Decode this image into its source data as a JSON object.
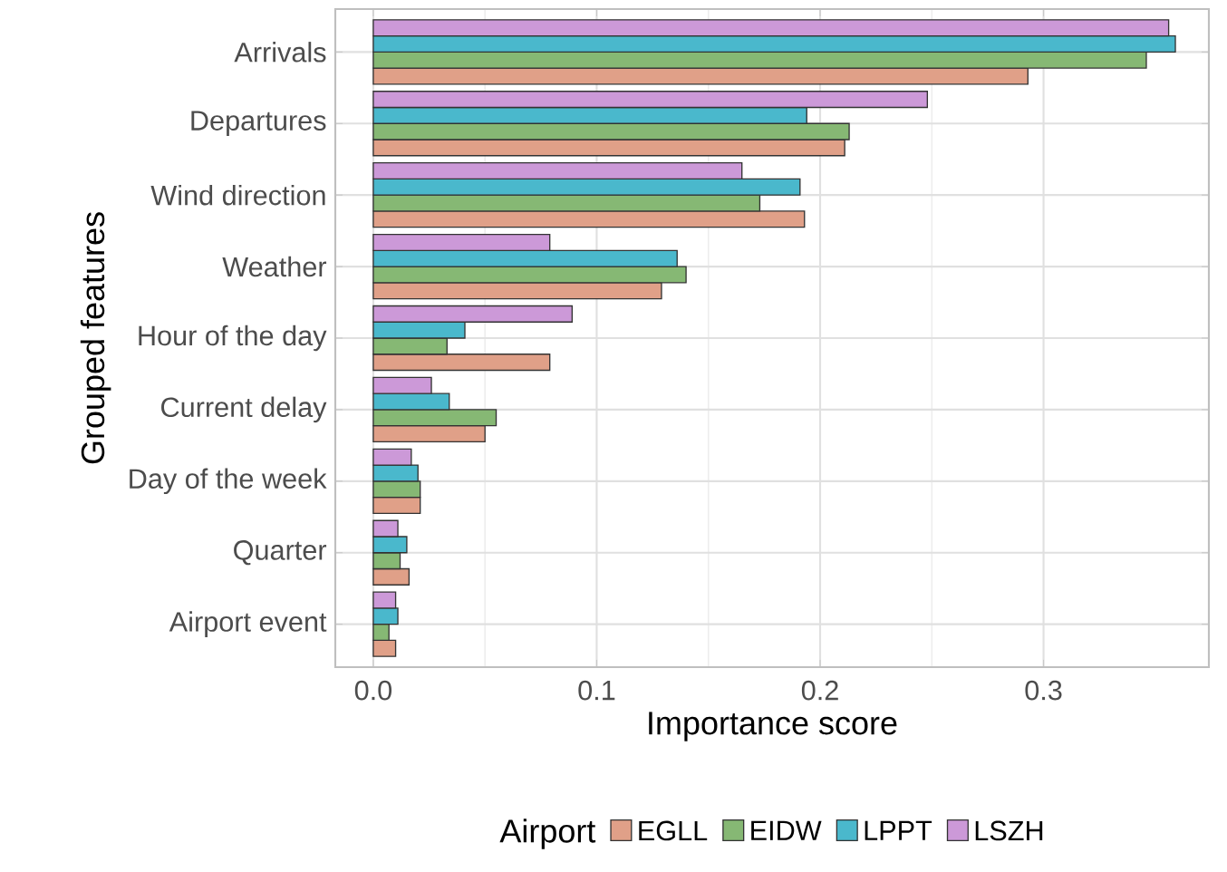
{
  "chart_data": {
    "type": "bar",
    "orientation": "horizontal",
    "xlabel": "Importance score",
    "ylabel": "Grouped features",
    "legend_title": "Airport",
    "categories": [
      "Arrivals",
      "Departures",
      "Wind direction",
      "Weather",
      "Hour of the day",
      "Current delay",
      "Day of the week",
      "Quarter",
      "Airport event"
    ],
    "series": [
      {
        "name": "EGLL",
        "color": "#e0a088",
        "values": [
          0.293,
          0.211,
          0.193,
          0.129,
          0.079,
          0.05,
          0.021,
          0.016,
          0.01
        ]
      },
      {
        "name": "EIDW",
        "color": "#86b874",
        "values": [
          0.346,
          0.213,
          0.173,
          0.14,
          0.033,
          0.055,
          0.021,
          0.012,
          0.007
        ]
      },
      {
        "name": "LPPT",
        "color": "#4ab8cc",
        "values": [
          0.359,
          0.194,
          0.191,
          0.136,
          0.041,
          0.034,
          0.02,
          0.015,
          0.011
        ]
      },
      {
        "name": "LSZH",
        "color": "#cc99d8",
        "values": [
          0.356,
          0.248,
          0.165,
          0.079,
          0.089,
          0.026,
          0.017,
          0.011,
          0.01
        ]
      }
    ],
    "xlim": [
      -0.017,
      0.374
    ],
    "xticks": [
      {
        "value": 0,
        "label": "0.0"
      },
      0.1,
      0.2,
      0.3
    ],
    "grid": true,
    "legend": "bottom"
  }
}
